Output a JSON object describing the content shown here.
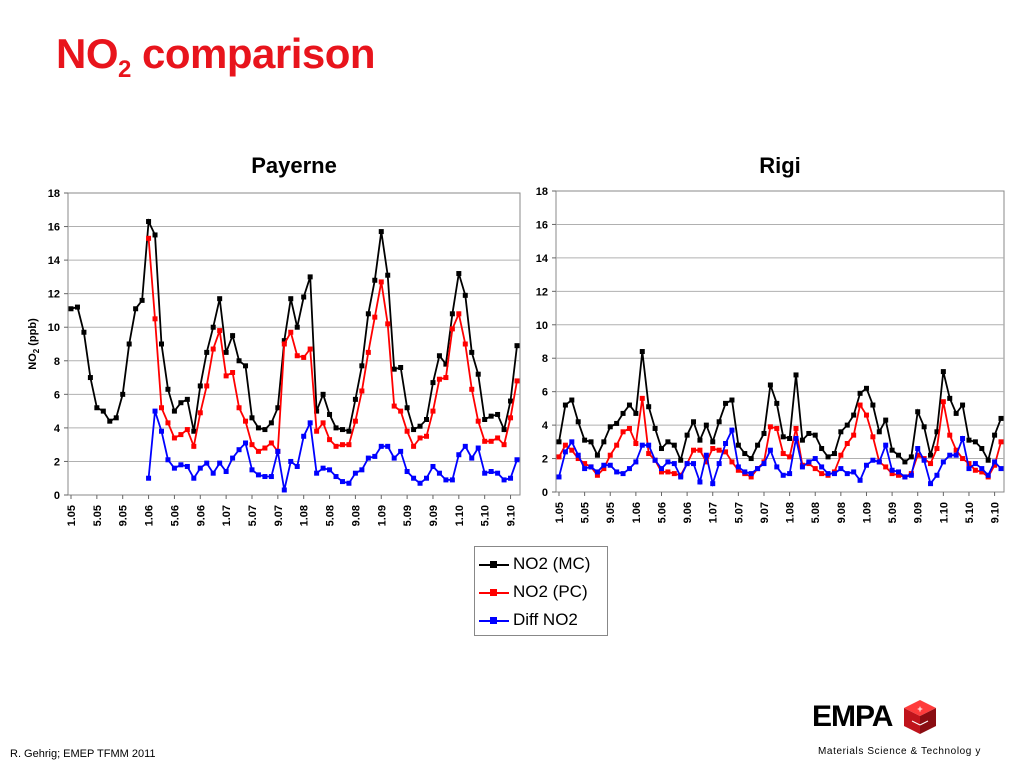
{
  "slide": {
    "title_main": "NO",
    "title_sub": "2",
    "title_rest": " comparison",
    "footer_left": "R. Gehrig; EMEP TFMM 2011",
    "footer_right": "Materials Science & Technolog y",
    "logo_text": "EMPA"
  },
  "legend": [
    {
      "label": "NO2 (MC)",
      "color": "#000000"
    },
    {
      "label": "NO2 (PC)",
      "color": "#ff0000"
    },
    {
      "label": "Diff NO2",
      "color": "#0000ff"
    }
  ],
  "chart_data": [
    {
      "type": "line",
      "title": "Payerne",
      "ylabel_main": "NO",
      "ylabel_sub": "2",
      "ylabel_rest": " (ppb)",
      "ylim": [
        0,
        18
      ],
      "yticks": [
        0,
        2,
        4,
        6,
        8,
        10,
        12,
        14,
        16,
        18
      ],
      "grid": true,
      "legend_position": "bottom-right",
      "x_tick_labels": [
        "1.05",
        "5.05",
        "9.05",
        "1.06",
        "5.06",
        "9.06",
        "1.07",
        "5.07",
        "9.07",
        "1.08",
        "5.08",
        "9.08",
        "1.09",
        "5.09",
        "9.09",
        "1.10",
        "5.10",
        "9.10"
      ],
      "series": [
        {
          "name": "NO2 (MC)",
          "color": "#000000",
          "values": [
            11.1,
            11.2,
            9.7,
            7.0,
            5.2,
            5.0,
            4.4,
            4.6,
            6.0,
            9.0,
            11.1,
            11.6,
            16.3,
            15.5,
            9.0,
            6.3,
            5.0,
            5.5,
            5.7,
            3.8,
            6.5,
            8.5,
            10.0,
            11.7,
            8.5,
            9.5,
            8.0,
            7.7,
            4.6,
            4.0,
            3.9,
            4.3,
            5.2,
            9.2,
            11.7,
            10.0,
            11.8,
            13.0,
            5.0,
            6.0,
            4.8,
            4.0,
            3.9,
            3.8,
            5.7,
            7.7,
            10.8,
            12.8,
            15.7,
            13.1,
            7.5,
            7.6,
            5.2,
            3.9,
            4.1,
            4.5,
            6.7,
            8.3,
            7.8,
            10.8,
            13.2,
            11.9,
            8.5,
            7.2,
            4.5,
            4.7,
            4.8,
            3.9,
            5.6,
            8.9
          ]
        },
        {
          "name": "NO2 (PC)",
          "color": "#ff0000",
          "values": [
            null,
            null,
            null,
            null,
            null,
            null,
            null,
            null,
            null,
            null,
            null,
            null,
            15.3,
            10.5,
            5.2,
            4.3,
            3.4,
            3.6,
            3.9,
            2.9,
            4.9,
            6.5,
            8.7,
            9.8,
            7.1,
            7.3,
            5.2,
            4.4,
            3.0,
            2.6,
            2.8,
            3.1,
            2.6,
            9.0,
            9.7,
            8.3,
            8.2,
            8.7,
            3.8,
            4.3,
            3.3,
            2.9,
            3.0,
            3.0,
            4.4,
            6.2,
            8.5,
            10.6,
            12.7,
            10.2,
            5.3,
            5.0,
            3.8,
            2.9,
            3.4,
            3.5,
            5.0,
            6.9,
            7.0,
            9.9,
            10.8,
            9.0,
            6.3,
            4.4,
            3.2,
            3.2,
            3.4,
            3.0,
            4.6,
            6.8
          ]
        },
        {
          "name": "Diff NO2",
          "color": "#0000ff",
          "values": [
            null,
            null,
            null,
            null,
            null,
            null,
            null,
            null,
            null,
            null,
            null,
            null,
            1.0,
            5.0,
            3.8,
            2.1,
            1.6,
            1.8,
            1.7,
            1.0,
            1.6,
            1.9,
            1.3,
            1.9,
            1.4,
            2.2,
            2.7,
            3.1,
            1.5,
            1.2,
            1.1,
            1.1,
            2.6,
            0.3,
            2.0,
            1.7,
            3.5,
            4.3,
            1.3,
            1.6,
            1.5,
            1.1,
            0.8,
            0.7,
            1.3,
            1.5,
            2.2,
            2.3,
            2.9,
            2.9,
            2.2,
            2.6,
            1.4,
            1.0,
            0.7,
            1.0,
            1.7,
            1.3,
            0.9,
            0.9,
            2.4,
            2.9,
            2.2,
            2.8,
            1.3,
            1.4,
            1.3,
            0.9,
            1.0,
            2.1
          ]
        }
      ]
    },
    {
      "type": "line",
      "title": "Rigi",
      "ylim": [
        0,
        18
      ],
      "yticks": [
        0,
        2,
        4,
        6,
        8,
        10,
        12,
        14,
        16,
        18
      ],
      "grid": true,
      "x_tick_labels": [
        "1.05",
        "5.05",
        "9.05",
        "1.06",
        "5.06",
        "9.06",
        "1.07",
        "5.07",
        "9.07",
        "1.08",
        "5.08",
        "9.08",
        "1.09",
        "5.09",
        "9.09",
        "1.10",
        "5.10",
        "9.10"
      ],
      "series": [
        {
          "name": "NO2 (MC)",
          "color": "#000000",
          "values": [
            3.0,
            5.2,
            5.5,
            4.2,
            3.1,
            3.0,
            2.2,
            3.0,
            3.9,
            4.1,
            4.7,
            5.2,
            4.7,
            8.4,
            5.1,
            3.8,
            2.6,
            3.0,
            2.8,
            1.9,
            3.4,
            4.2,
            3.1,
            4.0,
            3.0,
            4.2,
            5.3,
            5.5,
            2.8,
            2.3,
            2.0,
            2.8,
            3.5,
            6.4,
            5.3,
            3.3,
            3.2,
            7.0,
            3.1,
            3.5,
            3.4,
            2.6,
            2.1,
            2.3,
            3.6,
            4.0,
            4.6,
            5.9,
            6.2,
            5.2,
            3.6,
            4.3,
            2.5,
            2.2,
            1.8,
            2.1,
            4.8,
            3.9,
            2.2,
            3.6,
            7.2,
            5.6,
            4.7,
            5.2,
            3.1,
            3.0,
            2.6,
            1.9,
            3.4,
            4.4
          ]
        },
        {
          "name": "NO2 (PC)",
          "color": "#ff0000",
          "values": [
            2.1,
            2.8,
            2.5,
            2.0,
            1.7,
            1.5,
            1.0,
            1.4,
            2.2,
            2.8,
            3.6,
            3.8,
            2.9,
            5.6,
            2.3,
            1.9,
            1.2,
            1.2,
            1.1,
            1.0,
            1.7,
            2.5,
            2.5,
            1.8,
            2.6,
            2.5,
            2.4,
            1.8,
            1.3,
            1.1,
            0.9,
            1.4,
            1.8,
            3.9,
            3.8,
            2.3,
            2.1,
            3.8,
            1.6,
            1.7,
            1.4,
            1.1,
            1.0,
            1.2,
            2.2,
            2.9,
            3.4,
            5.2,
            4.6,
            3.3,
            1.8,
            1.5,
            1.1,
            1.0,
            0.9,
            1.1,
            2.2,
            2.0,
            1.7,
            2.6,
            5.4,
            3.4,
            2.5,
            2.0,
            1.7,
            1.3,
            1.2,
            0.9,
            1.6,
            3.0
          ]
        },
        {
          "name": "Diff NO2",
          "color": "#0000ff",
          "values": [
            0.9,
            2.4,
            3.0,
            2.2,
            1.4,
            1.5,
            1.2,
            1.6,
            1.6,
            1.2,
            1.1,
            1.4,
            1.8,
            2.8,
            2.8,
            1.9,
            1.4,
            1.8,
            1.7,
            0.9,
            1.7,
            1.7,
            0.6,
            2.2,
            0.5,
            1.7,
            2.9,
            3.7,
            1.5,
            1.2,
            1.1,
            1.4,
            1.7,
            2.5,
            1.5,
            1.0,
            1.1,
            3.2,
            1.5,
            1.8,
            2.0,
            1.5,
            1.1,
            1.1,
            1.4,
            1.1,
            1.2,
            0.7,
            1.6,
            1.9,
            1.8,
            2.8,
            1.3,
            1.2,
            0.9,
            1.0,
            2.6,
            1.9,
            0.5,
            1.0,
            1.8,
            2.2,
            2.2,
            3.2,
            1.4,
            1.7,
            1.4,
            1.0,
            1.8,
            1.4
          ]
        }
      ]
    }
  ]
}
